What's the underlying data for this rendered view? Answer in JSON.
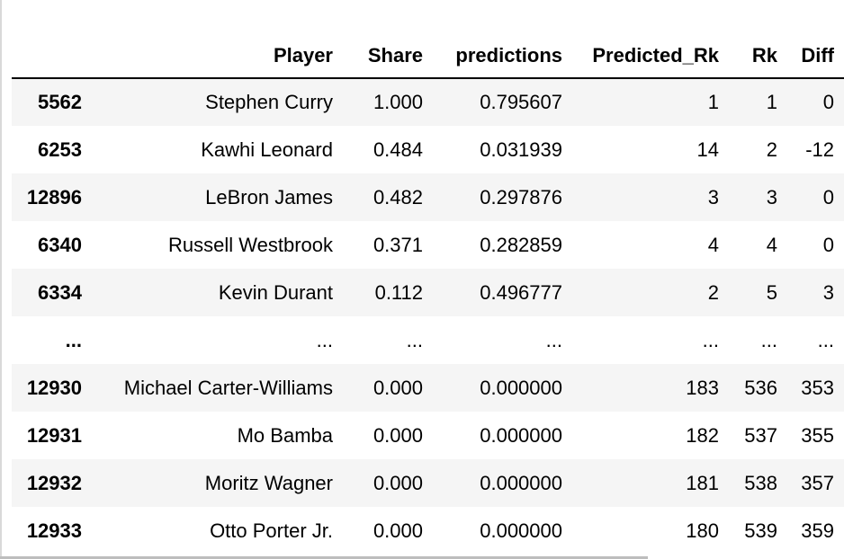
{
  "table": {
    "index_header": "",
    "columns": [
      "Player",
      "Share",
      "predictions",
      "Predicted_Rk",
      "Rk",
      "Diff"
    ],
    "rows": [
      {
        "index": "5562",
        "cells": [
          "Stephen Curry",
          "1.000",
          "0.795607",
          "1",
          "1",
          "0"
        ]
      },
      {
        "index": "6253",
        "cells": [
          "Kawhi Leonard",
          "0.484",
          "0.031939",
          "14",
          "2",
          "-12"
        ]
      },
      {
        "index": "12896",
        "cells": [
          "LeBron James",
          "0.482",
          "0.297876",
          "3",
          "3",
          "0"
        ]
      },
      {
        "index": "6340",
        "cells": [
          "Russell Westbrook",
          "0.371",
          "0.282859",
          "4",
          "4",
          "0"
        ]
      },
      {
        "index": "6334",
        "cells": [
          "Kevin Durant",
          "0.112",
          "0.496777",
          "2",
          "5",
          "3"
        ]
      },
      {
        "index": "...",
        "cells": [
          "...",
          "...",
          "...",
          "...",
          "...",
          "..."
        ]
      },
      {
        "index": "12930",
        "cells": [
          "Michael Carter-Williams",
          "0.000",
          "0.000000",
          "183",
          "536",
          "353"
        ]
      },
      {
        "index": "12931",
        "cells": [
          "Mo Bamba",
          "0.000",
          "0.000000",
          "182",
          "537",
          "355"
        ]
      },
      {
        "index": "12932",
        "cells": [
          "Moritz Wagner",
          "0.000",
          "0.000000",
          "181",
          "538",
          "357"
        ]
      },
      {
        "index": "12933",
        "cells": [
          "Otto Porter Jr.",
          "0.000",
          "0.000000",
          "180",
          "539",
          "359"
        ]
      }
    ]
  }
}
